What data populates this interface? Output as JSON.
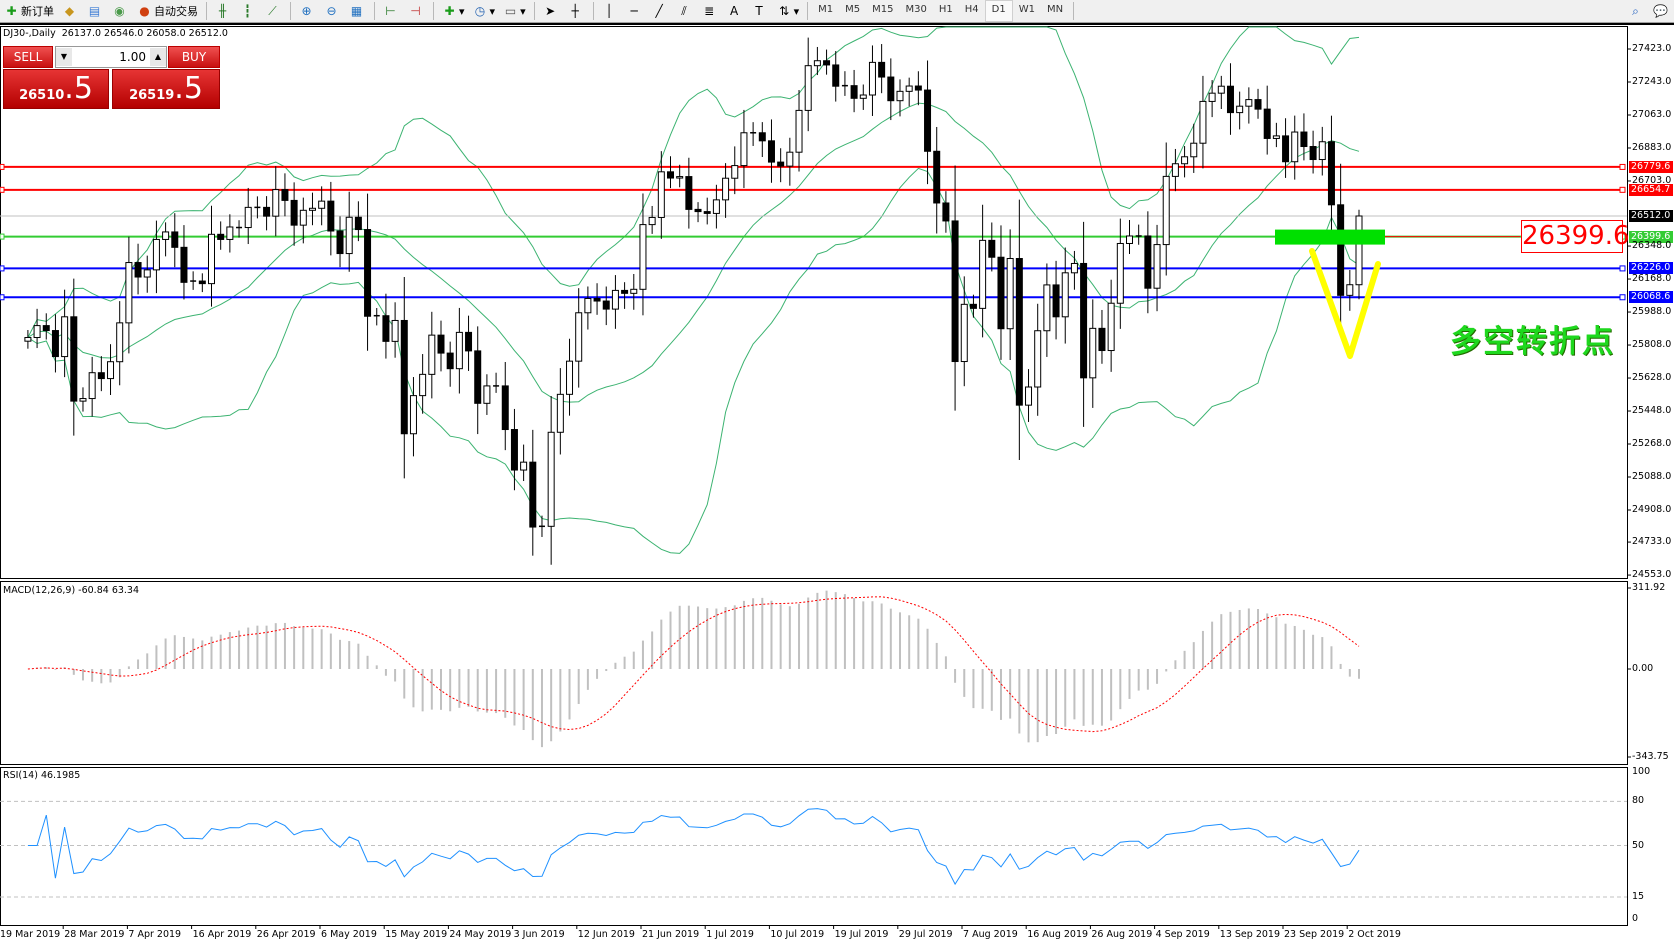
{
  "toolbar": {
    "new_order": "新订单",
    "auto_trading": "自动交易",
    "timeframes": [
      "M1",
      "M5",
      "M15",
      "M30",
      "H1",
      "H4",
      "D1",
      "W1",
      "MN"
    ],
    "active_timeframe": "D1",
    "icons": [
      "new-order-icon",
      "expert-icon",
      "history-icon",
      "signals-icon",
      "auto-trading-icon",
      "bar-chart-icon",
      "candlestick-icon",
      "line-chart-icon",
      "zoom-in-icon",
      "zoom-out-icon",
      "tile-windows-icon",
      "chart-shift-icon",
      "autoscroll-icon",
      "indicators-icon",
      "periods-icon",
      "templates-icon",
      "cursor-icon",
      "crosshair-icon",
      "vertical-line-icon",
      "horizontal-line-icon",
      "trendline-icon",
      "equidistant-channel-icon",
      "fibonacci-icon",
      "text-icon",
      "text-label-icon",
      "arrows-icon",
      "search-icon",
      "chat-icon"
    ]
  },
  "chart": {
    "header": "DJ30-,Daily  26137.0 26546.0 26058.0 26512.0",
    "symbol": "DJ30-",
    "period": "Daily",
    "ohlc_last": {
      "open": 26137.0,
      "high": 26546.0,
      "low": 26058.0,
      "close": 26512.0
    },
    "closes": [
      25849,
      25914,
      25887,
      25745,
      25962,
      25502,
      25516,
      25657,
      25625,
      25717,
      25929,
      26258,
      26179,
      26218,
      26384,
      26425,
      26341,
      26150,
      26157,
      26143,
      26412,
      26384,
      26452,
      26449,
      26559,
      26559,
      26511,
      26656,
      26597,
      26462,
      26543,
      26554,
      26593,
      26430,
      26307,
      26505,
      26438,
      25965,
      25968,
      25828,
      25942,
      25324,
      25532,
      25648,
      25862,
      25764,
      25679,
      25877,
      25776,
      25490,
      25585,
      25585,
      25347,
      25126,
      25169,
      24815,
      24819,
      25332,
      25539,
      25720,
      25984,
      26062,
      26048,
      26004,
      26106,
      26090,
      26112,
      26465,
      26504,
      26753,
      26719,
      26727,
      26548,
      26536,
      26526,
      26600,
      26718,
      26787,
      26966,
      26966,
      26922,
      26806,
      26784,
      26860,
      27088,
      27332,
      27359,
      27336,
      27220,
      27223,
      27154,
      27172,
      27350,
      27270,
      27141,
      27192,
      27221,
      27199,
      26865,
      26583,
      26485,
      25718,
      26030,
      26008,
      26379,
      26287,
      25897,
      26280,
      25480,
      25579,
      25886,
      26136,
      25962,
      26202,
      26253,
      25629,
      25899,
      25778,
      26036,
      26362,
      26403,
      26403,
      26118,
      26356,
      26728,
      26797,
      26835,
      26909,
      27137,
      27182,
      27220,
      27076,
      27111,
      27147,
      27095,
      26935,
      26949,
      26808,
      26970,
      26891,
      26820,
      26917,
      26573,
      26079,
      26137,
      26512
    ],
    "current_price": "26512.0",
    "price_ticks": [
      "27423.0",
      "27243.0",
      "27063.0",
      "26883.0",
      "26703.0",
      "26348.0",
      "26168.0",
      "25988.0",
      "25808.0",
      "25628.0",
      "25448.0",
      "25268.0",
      "25088.0",
      "24908.0",
      "24733.0",
      "24553.0"
    ],
    "levels": [
      {
        "price": "26779.6",
        "color": "#ff0000"
      },
      {
        "price": "26654.7",
        "color": "#ff0000"
      },
      {
        "price": "26399.6",
        "color": "#33cc33"
      },
      {
        "price": "26226.0",
        "color": "#0000ff"
      },
      {
        "price": "26068.6",
        "color": "#0000ff"
      }
    ],
    "annotation_level": "26399.6",
    "annotation_text": "多空转折点",
    "bollinger_color": "#3cb371",
    "v_mark_color": "#ffff00",
    "zone_color": "#00e000"
  },
  "trade_panel": {
    "sell_label": "SELL",
    "buy_label": "BUY",
    "lot": "1.00",
    "sell_price_main": "26510",
    "sell_price_frac": ".5",
    "buy_price_main": "26519",
    "buy_price_frac": ".5"
  },
  "macd": {
    "label": "MACD(12,26,9) -60.84 63.34",
    "ticks": [
      "311.92",
      "0.00",
      "-343.75"
    ],
    "histogram_color": "#c0c0c0",
    "signal_color": "#ff0000"
  },
  "rsi": {
    "label": "RSI(14) 46.1985",
    "ticks": [
      "100",
      "80",
      "50",
      "15",
      "0"
    ],
    "line_color": "#1e90ff"
  },
  "dates": [
    "19 Mar 2019",
    "28 Mar 2019",
    "7 Apr 2019",
    "16 Apr 2019",
    "26 Apr 2019",
    "6 May 2019",
    "15 May 2019",
    "24 May 2019",
    "3 Jun 2019",
    "12 Jun 2019",
    "21 Jun 2019",
    "1 Jul 2019",
    "10 Jul 2019",
    "19 Jul 2019",
    "29 Jul 2019",
    "7 Aug 2019",
    "16 Aug 2019",
    "26 Aug 2019",
    "4 Sep 2019",
    "13 Sep 2019",
    "23 Sep 2019",
    "2 Oct 2019"
  ]
}
